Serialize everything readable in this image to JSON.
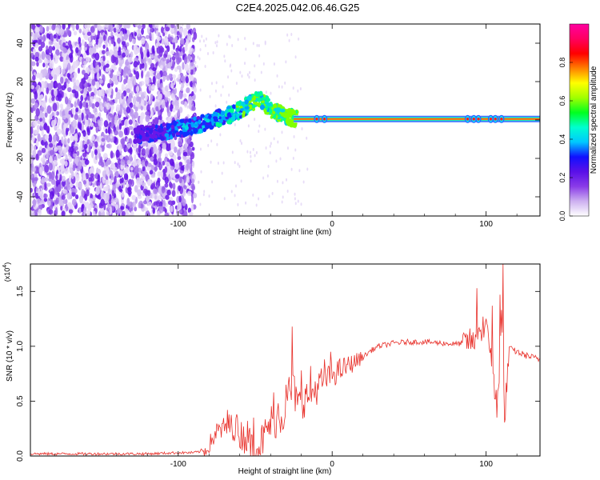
{
  "title": "C2E4.2025.042.06.46.G25",
  "chart_data": [
    {
      "type": "heatmap",
      "xlabel": "Height of straight line (km)",
      "ylabel": "Frequency (Hz)",
      "xlim": [
        -196,
        135
      ],
      "ylim": [
        -50,
        50
      ],
      "xticks": [
        -100,
        0,
        100
      ],
      "yticks": [
        -40,
        -20,
        0,
        20,
        40
      ],
      "colorbar": {
        "label": "Normalized spectral amplitude",
        "ticks": [
          "0.0",
          "0.2",
          "0.4",
          "0.6",
          "0.8"
        ],
        "range": [
          0,
          1
        ],
        "colors": [
          "#ffffff",
          "#cdb0f0",
          "#8a3ce8",
          "#5a10e8",
          "#1010ff",
          "#00c8ff",
          "#00ffd0",
          "#00ff20",
          "#a0ff00",
          "#ffff00",
          "#ff8000",
          "#ff0000",
          "#ff0060",
          "#ff00a0"
        ]
      },
      "features": {
        "noise_region_x": [
          -196,
          -89
        ],
        "carrier_start_x": -25,
        "carrier_end_x": 135,
        "carrier_freq_hz": 0.5,
        "drift_points": [
          [
            -128,
            -8
          ],
          [
            -110,
            -6
          ],
          [
            -95,
            -4
          ],
          [
            -85,
            -2
          ],
          [
            -75,
            1
          ],
          [
            -65,
            3
          ],
          [
            -58,
            6
          ],
          [
            -52,
            9
          ],
          [
            -46,
            11
          ],
          [
            -40,
            5
          ],
          [
            -32,
            3
          ],
          [
            -26,
            1
          ]
        ]
      },
      "grid": false
    },
    {
      "type": "line",
      "xlabel": "Height of straight line (km)",
      "ylabel": "SNR (10 * v/v)",
      "scale_label_prefix": "(x10",
      "scale_label_exp": "4",
      "scale_label_suffix": ")",
      "xlim": [
        -196,
        135
      ],
      "ylim": [
        0,
        1.75
      ],
      "xticks": [
        -100,
        0,
        100
      ],
      "yticks": [
        "0.0",
        "0.5",
        "1.0",
        "1.5"
      ],
      "color": "#e8302a",
      "series": [
        {
          "x": [
            -196,
            -180,
            -160,
            -140,
            -120,
            -100,
            -90,
            -82,
            -78,
            -75,
            -70,
            -65,
            -60,
            -55,
            -50,
            -45,
            -40,
            -35,
            -30,
            -28,
            -25,
            -22,
            -20,
            -15,
            -10,
            -5,
            0,
            5,
            10,
            15,
            20,
            25,
            30,
            40,
            50,
            60,
            70,
            80,
            85,
            90,
            93,
            95,
            98,
            100,
            103,
            106,
            108,
            110,
            112,
            115,
            120,
            125,
            130,
            135
          ],
          "y": [
            0.02,
            0.02,
            0.02,
            0.02,
            0.02,
            0.03,
            0.03,
            0.05,
            0.15,
            0.22,
            0.25,
            0.28,
            0.2,
            0.15,
            0.05,
            0.15,
            0.3,
            0.35,
            0.4,
            0.55,
            0.6,
            0.45,
            0.5,
            0.55,
            0.62,
            0.7,
            0.75,
            0.78,
            0.82,
            0.86,
            0.9,
            0.96,
            1.0,
            1.03,
            1.04,
            1.04,
            1.03,
            1.02,
            1.03,
            1.05,
            1.02,
            1.2,
            1.05,
            1.15,
            0.98,
            0.5,
            0.6,
            1.3,
            0.35,
            0.98,
            0.95,
            0.92,
            0.9,
            0.88
          ]
        }
      ],
      "spikes": [
        [
          -68,
          0.42
        ],
        [
          -62,
          0.38
        ],
        [
          -55,
          0.32
        ],
        [
          -51,
          0.35
        ],
        [
          -38,
          0.58
        ],
        [
          -35,
          0.48
        ],
        [
          -30,
          0.65
        ],
        [
          -28,
          0.72
        ],
        [
          -26,
          1.18
        ],
        [
          -20,
          0.78
        ],
        [
          -14,
          0.82
        ],
        [
          -5,
          0.88
        ],
        [
          -1,
          0.95
        ],
        [
          94,
          1.53
        ],
        [
          98,
          1.27
        ],
        [
          101,
          1.18
        ],
        [
          104,
          1.37
        ],
        [
          107,
          0.35
        ],
        [
          109,
          1.47
        ],
        [
          111,
          1.75
        ]
      ],
      "grid": false
    }
  ]
}
